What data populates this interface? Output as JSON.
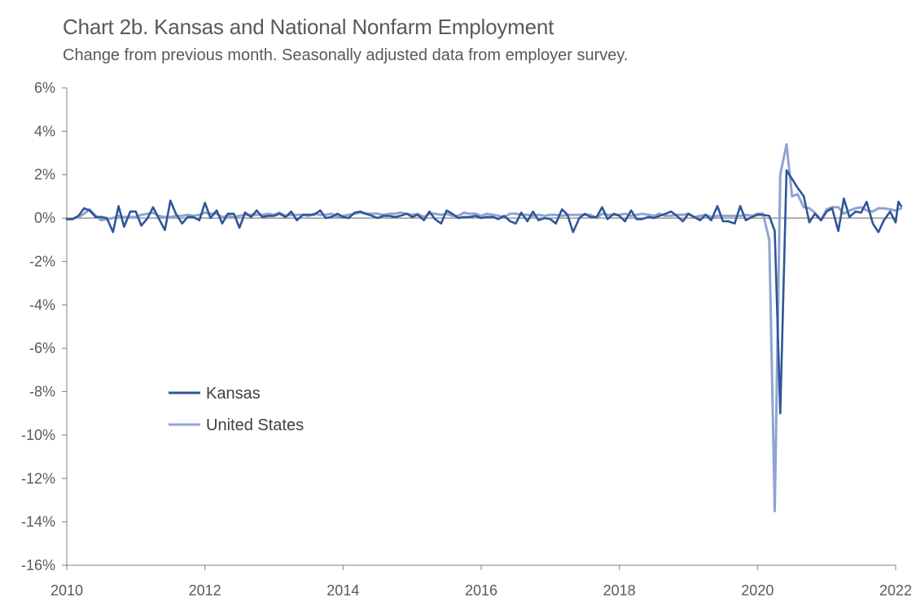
{
  "chart_data": {
    "type": "line",
    "title": "Chart 2b. Kansas and National Nonfarm Employment",
    "subtitle": "Change from previous month. Seasonally adjusted data from employer survey.",
    "xlabel": "",
    "ylabel": "",
    "ylim": [
      -16,
      6
    ],
    "y_ticks": [
      6,
      4,
      2,
      0,
      -2,
      -4,
      -6,
      -8,
      -10,
      -12,
      -14,
      -16
    ],
    "y_tick_labels": [
      "6%",
      "4%",
      "2%",
      "0%",
      "-2%",
      "-4%",
      "-6%",
      "-8%",
      "-10%",
      "-12%",
      "-14%",
      "-16%"
    ],
    "xlim": [
      2010.0,
      2022.0
    ],
    "x_ticks": [
      2010,
      2012,
      2014,
      2016,
      2018,
      2020,
      2022
    ],
    "x_tick_labels": [
      "2010",
      "2012",
      "2014",
      "2016",
      "2018",
      "2020",
      "2022"
    ],
    "grid": false,
    "legend_position": "lower-left",
    "series": [
      {
        "name": "Kansas",
        "color": "#2F5597",
        "values": [
          [
            2010.0,
            -0.05
          ],
          [
            2010.08,
            -0.05
          ],
          [
            2010.17,
            0.1
          ],
          [
            2010.25,
            0.45
          ],
          [
            2010.33,
            0.35
          ],
          [
            2010.42,
            0.05
          ],
          [
            2010.5,
            0.05
          ],
          [
            2010.58,
            0.0
          ],
          [
            2010.67,
            -0.65
          ],
          [
            2010.75,
            0.55
          ],
          [
            2010.83,
            -0.4
          ],
          [
            2010.92,
            0.3
          ],
          [
            2011.0,
            0.3
          ],
          [
            2011.08,
            -0.35
          ],
          [
            2011.17,
            0.0
          ],
          [
            2011.25,
            0.5
          ],
          [
            2011.33,
            0.0
          ],
          [
            2011.42,
            -0.55
          ],
          [
            2011.5,
            0.8
          ],
          [
            2011.58,
            0.2
          ],
          [
            2011.67,
            -0.25
          ],
          [
            2011.75,
            0.05
          ],
          [
            2011.83,
            0.05
          ],
          [
            2011.92,
            -0.1
          ],
          [
            2012.0,
            0.7
          ],
          [
            2012.08,
            0.0
          ],
          [
            2012.17,
            0.35
          ],
          [
            2012.25,
            -0.25
          ],
          [
            2012.33,
            0.2
          ],
          [
            2012.42,
            0.2
          ],
          [
            2012.5,
            -0.45
          ],
          [
            2012.58,
            0.25
          ],
          [
            2012.67,
            0.05
          ],
          [
            2012.75,
            0.35
          ],
          [
            2012.83,
            0.05
          ],
          [
            2012.92,
            0.1
          ],
          [
            2013.0,
            0.1
          ],
          [
            2013.08,
            0.2
          ],
          [
            2013.17,
            0.05
          ],
          [
            2013.25,
            0.3
          ],
          [
            2013.33,
            -0.1
          ],
          [
            2013.42,
            0.15
          ],
          [
            2013.5,
            0.15
          ],
          [
            2013.58,
            0.15
          ],
          [
            2013.67,
            0.35
          ],
          [
            2013.75,
            0.0
          ],
          [
            2013.83,
            0.05
          ],
          [
            2013.92,
            0.2
          ],
          [
            2014.0,
            0.05
          ],
          [
            2014.08,
            0.0
          ],
          [
            2014.17,
            0.25
          ],
          [
            2014.25,
            0.3
          ],
          [
            2014.33,
            0.2
          ],
          [
            2014.42,
            0.1
          ],
          [
            2014.5,
            0.0
          ],
          [
            2014.58,
            0.1
          ],
          [
            2014.67,
            0.1
          ],
          [
            2014.75,
            0.05
          ],
          [
            2014.83,
            0.1
          ],
          [
            2014.92,
            0.2
          ],
          [
            2015.0,
            0.05
          ],
          [
            2015.08,
            0.15
          ],
          [
            2015.17,
            -0.1
          ],
          [
            2015.25,
            0.3
          ],
          [
            2015.33,
            -0.05
          ],
          [
            2015.42,
            -0.25
          ],
          [
            2015.5,
            0.35
          ],
          [
            2015.58,
            0.2
          ],
          [
            2015.67,
            0.0
          ],
          [
            2015.75,
            0.05
          ],
          [
            2015.83,
            0.05
          ],
          [
            2015.92,
            0.1
          ],
          [
            2016.0,
            0.0
          ],
          [
            2016.08,
            0.05
          ],
          [
            2016.17,
            0.05
          ],
          [
            2016.25,
            -0.05
          ],
          [
            2016.33,
            0.1
          ],
          [
            2016.42,
            -0.15
          ],
          [
            2016.5,
            -0.25
          ],
          [
            2016.58,
            0.25
          ],
          [
            2016.67,
            -0.15
          ],
          [
            2016.75,
            0.3
          ],
          [
            2016.83,
            -0.1
          ],
          [
            2016.92,
            0.0
          ],
          [
            2017.0,
            -0.05
          ],
          [
            2017.08,
            -0.25
          ],
          [
            2017.17,
            0.4
          ],
          [
            2017.25,
            0.15
          ],
          [
            2017.33,
            -0.65
          ],
          [
            2017.42,
            0.0
          ],
          [
            2017.5,
            0.2
          ],
          [
            2017.58,
            0.05
          ],
          [
            2017.67,
            0.05
          ],
          [
            2017.75,
            0.5
          ],
          [
            2017.83,
            -0.05
          ],
          [
            2017.92,
            0.2
          ],
          [
            2018.0,
            0.1
          ],
          [
            2018.08,
            -0.15
          ],
          [
            2018.17,
            0.35
          ],
          [
            2018.25,
            -0.05
          ],
          [
            2018.33,
            -0.05
          ],
          [
            2018.42,
            0.05
          ],
          [
            2018.5,
            0.0
          ],
          [
            2018.58,
            0.1
          ],
          [
            2018.67,
            0.2
          ],
          [
            2018.75,
            0.3
          ],
          [
            2018.83,
            0.1
          ],
          [
            2018.92,
            -0.15
          ],
          [
            2019.0,
            0.2
          ],
          [
            2019.08,
            0.05
          ],
          [
            2019.17,
            -0.1
          ],
          [
            2019.25,
            0.15
          ],
          [
            2019.33,
            -0.1
          ],
          [
            2019.42,
            0.55
          ],
          [
            2019.5,
            -0.15
          ],
          [
            2019.58,
            -0.15
          ],
          [
            2019.67,
            -0.25
          ],
          [
            2019.75,
            0.55
          ],
          [
            2019.83,
            -0.1
          ],
          [
            2019.92,
            0.05
          ],
          [
            2020.0,
            0.15
          ],
          [
            2020.08,
            0.15
          ],
          [
            2020.17,
            0.1
          ],
          [
            2020.25,
            -0.6
          ],
          [
            2020.33,
            -9.0
          ],
          [
            2020.42,
            2.2
          ],
          [
            2020.5,
            1.8
          ],
          [
            2020.58,
            1.4
          ],
          [
            2020.67,
            1.0
          ],
          [
            2020.75,
            -0.2
          ],
          [
            2020.83,
            0.2
          ],
          [
            2020.92,
            -0.1
          ],
          [
            2021.0,
            0.3
          ],
          [
            2021.08,
            0.45
          ],
          [
            2021.17,
            -0.6
          ],
          [
            2021.25,
            0.9
          ],
          [
            2021.33,
            0.05
          ],
          [
            2021.42,
            0.3
          ],
          [
            2021.5,
            0.25
          ],
          [
            2021.58,
            0.75
          ],
          [
            2021.67,
            -0.25
          ],
          [
            2021.75,
            -0.65
          ],
          [
            2021.83,
            -0.1
          ],
          [
            2021.92,
            0.3
          ],
          [
            2022.0,
            -0.2
          ],
          [
            2022.04,
            0.75
          ],
          [
            2022.08,
            0.55
          ]
        ]
      },
      {
        "name": "United States",
        "color": "#8EA4D2",
        "values": [
          [
            2010.0,
            -0.05
          ],
          [
            2010.08,
            -0.05
          ],
          [
            2010.17,
            0.05
          ],
          [
            2010.25,
            0.2
          ],
          [
            2010.33,
            0.4
          ],
          [
            2010.42,
            0.1
          ],
          [
            2010.5,
            -0.1
          ],
          [
            2010.58,
            -0.05
          ],
          [
            2010.67,
            0.0
          ],
          [
            2010.75,
            0.1
          ],
          [
            2010.83,
            0.05
          ],
          [
            2010.92,
            0.05
          ],
          [
            2011.0,
            0.05
          ],
          [
            2011.08,
            0.15
          ],
          [
            2011.17,
            0.2
          ],
          [
            2011.25,
            0.25
          ],
          [
            2011.33,
            0.1
          ],
          [
            2011.42,
            0.05
          ],
          [
            2011.5,
            0.05
          ],
          [
            2011.58,
            0.1
          ],
          [
            2011.67,
            0.1
          ],
          [
            2011.75,
            0.15
          ],
          [
            2011.83,
            0.1
          ],
          [
            2011.92,
            0.15
          ],
          [
            2012.0,
            0.25
          ],
          [
            2012.08,
            0.2
          ],
          [
            2012.17,
            0.2
          ],
          [
            2012.25,
            0.05
          ],
          [
            2012.33,
            0.1
          ],
          [
            2012.42,
            0.05
          ],
          [
            2012.5,
            0.1
          ],
          [
            2012.58,
            0.15
          ],
          [
            2012.67,
            0.15
          ],
          [
            2012.75,
            0.15
          ],
          [
            2012.83,
            0.15
          ],
          [
            2012.92,
            0.2
          ],
          [
            2013.0,
            0.15
          ],
          [
            2013.08,
            0.25
          ],
          [
            2013.17,
            0.1
          ],
          [
            2013.25,
            0.15
          ],
          [
            2013.33,
            0.15
          ],
          [
            2013.42,
            0.15
          ],
          [
            2013.5,
            0.1
          ],
          [
            2013.58,
            0.2
          ],
          [
            2013.67,
            0.15
          ],
          [
            2013.75,
            0.15
          ],
          [
            2013.83,
            0.2
          ],
          [
            2013.92,
            0.05
          ],
          [
            2014.0,
            0.1
          ],
          [
            2014.08,
            0.15
          ],
          [
            2014.17,
            0.2
          ],
          [
            2014.25,
            0.25
          ],
          [
            2014.33,
            0.2
          ],
          [
            2014.42,
            0.2
          ],
          [
            2014.5,
            0.2
          ],
          [
            2014.58,
            0.15
          ],
          [
            2014.67,
            0.2
          ],
          [
            2014.75,
            0.2
          ],
          [
            2014.83,
            0.25
          ],
          [
            2014.92,
            0.2
          ],
          [
            2015.0,
            0.15
          ],
          [
            2015.08,
            0.2
          ],
          [
            2015.17,
            0.05
          ],
          [
            2015.25,
            0.2
          ],
          [
            2015.33,
            0.2
          ],
          [
            2015.42,
            0.15
          ],
          [
            2015.5,
            0.2
          ],
          [
            2015.58,
            0.1
          ],
          [
            2015.67,
            0.1
          ],
          [
            2015.75,
            0.25
          ],
          [
            2015.83,
            0.2
          ],
          [
            2015.92,
            0.2
          ],
          [
            2016.0,
            0.1
          ],
          [
            2016.08,
            0.2
          ],
          [
            2016.17,
            0.15
          ],
          [
            2016.25,
            0.1
          ],
          [
            2016.33,
            0.05
          ],
          [
            2016.42,
            0.2
          ],
          [
            2016.5,
            0.2
          ],
          [
            2016.58,
            0.15
          ],
          [
            2016.67,
            0.15
          ],
          [
            2016.75,
            0.1
          ],
          [
            2016.83,
            0.15
          ],
          [
            2016.92,
            0.1
          ],
          [
            2017.0,
            0.15
          ],
          [
            2017.08,
            0.15
          ],
          [
            2017.17,
            0.1
          ],
          [
            2017.25,
            0.15
          ],
          [
            2017.33,
            0.15
          ],
          [
            2017.42,
            0.15
          ],
          [
            2017.5,
            0.15
          ],
          [
            2017.58,
            0.15
          ],
          [
            2017.67,
            0.0
          ],
          [
            2017.75,
            0.2
          ],
          [
            2017.83,
            0.15
          ],
          [
            2017.92,
            0.15
          ],
          [
            2018.0,
            0.15
          ],
          [
            2018.08,
            0.2
          ],
          [
            2018.17,
            0.1
          ],
          [
            2018.25,
            0.15
          ],
          [
            2018.33,
            0.2
          ],
          [
            2018.42,
            0.15
          ],
          [
            2018.5,
            0.1
          ],
          [
            2018.58,
            0.2
          ],
          [
            2018.67,
            0.1
          ],
          [
            2018.75,
            0.1
          ],
          [
            2018.83,
            0.15
          ],
          [
            2018.92,
            0.15
          ],
          [
            2019.0,
            0.2
          ],
          [
            2019.08,
            0.05
          ],
          [
            2019.17,
            0.1
          ],
          [
            2019.25,
            0.15
          ],
          [
            2019.33,
            0.05
          ],
          [
            2019.42,
            0.1
          ],
          [
            2019.5,
            0.1
          ],
          [
            2019.58,
            0.1
          ],
          [
            2019.67,
            0.1
          ],
          [
            2019.75,
            0.1
          ],
          [
            2019.83,
            0.15
          ],
          [
            2019.92,
            0.1
          ],
          [
            2020.0,
            0.2
          ],
          [
            2020.08,
            0.2
          ],
          [
            2020.17,
            -1.0
          ],
          [
            2020.25,
            -13.5
          ],
          [
            2020.33,
            2.0
          ],
          [
            2020.42,
            3.4
          ],
          [
            2020.5,
            1.0
          ],
          [
            2020.58,
            1.1
          ],
          [
            2020.67,
            0.5
          ],
          [
            2020.75,
            0.45
          ],
          [
            2020.83,
            0.25
          ],
          [
            2020.92,
            -0.1
          ],
          [
            2021.0,
            0.4
          ],
          [
            2021.08,
            0.5
          ],
          [
            2021.17,
            0.5
          ],
          [
            2021.25,
            0.2
          ],
          [
            2021.33,
            0.35
          ],
          [
            2021.42,
            0.45
          ],
          [
            2021.5,
            0.5
          ],
          [
            2021.58,
            0.35
          ],
          [
            2021.67,
            0.3
          ],
          [
            2021.75,
            0.45
          ],
          [
            2021.83,
            0.45
          ],
          [
            2021.92,
            0.4
          ],
          [
            2022.0,
            0.35
          ],
          [
            2022.04,
            0.4
          ],
          [
            2022.08,
            0.45
          ]
        ]
      }
    ]
  }
}
